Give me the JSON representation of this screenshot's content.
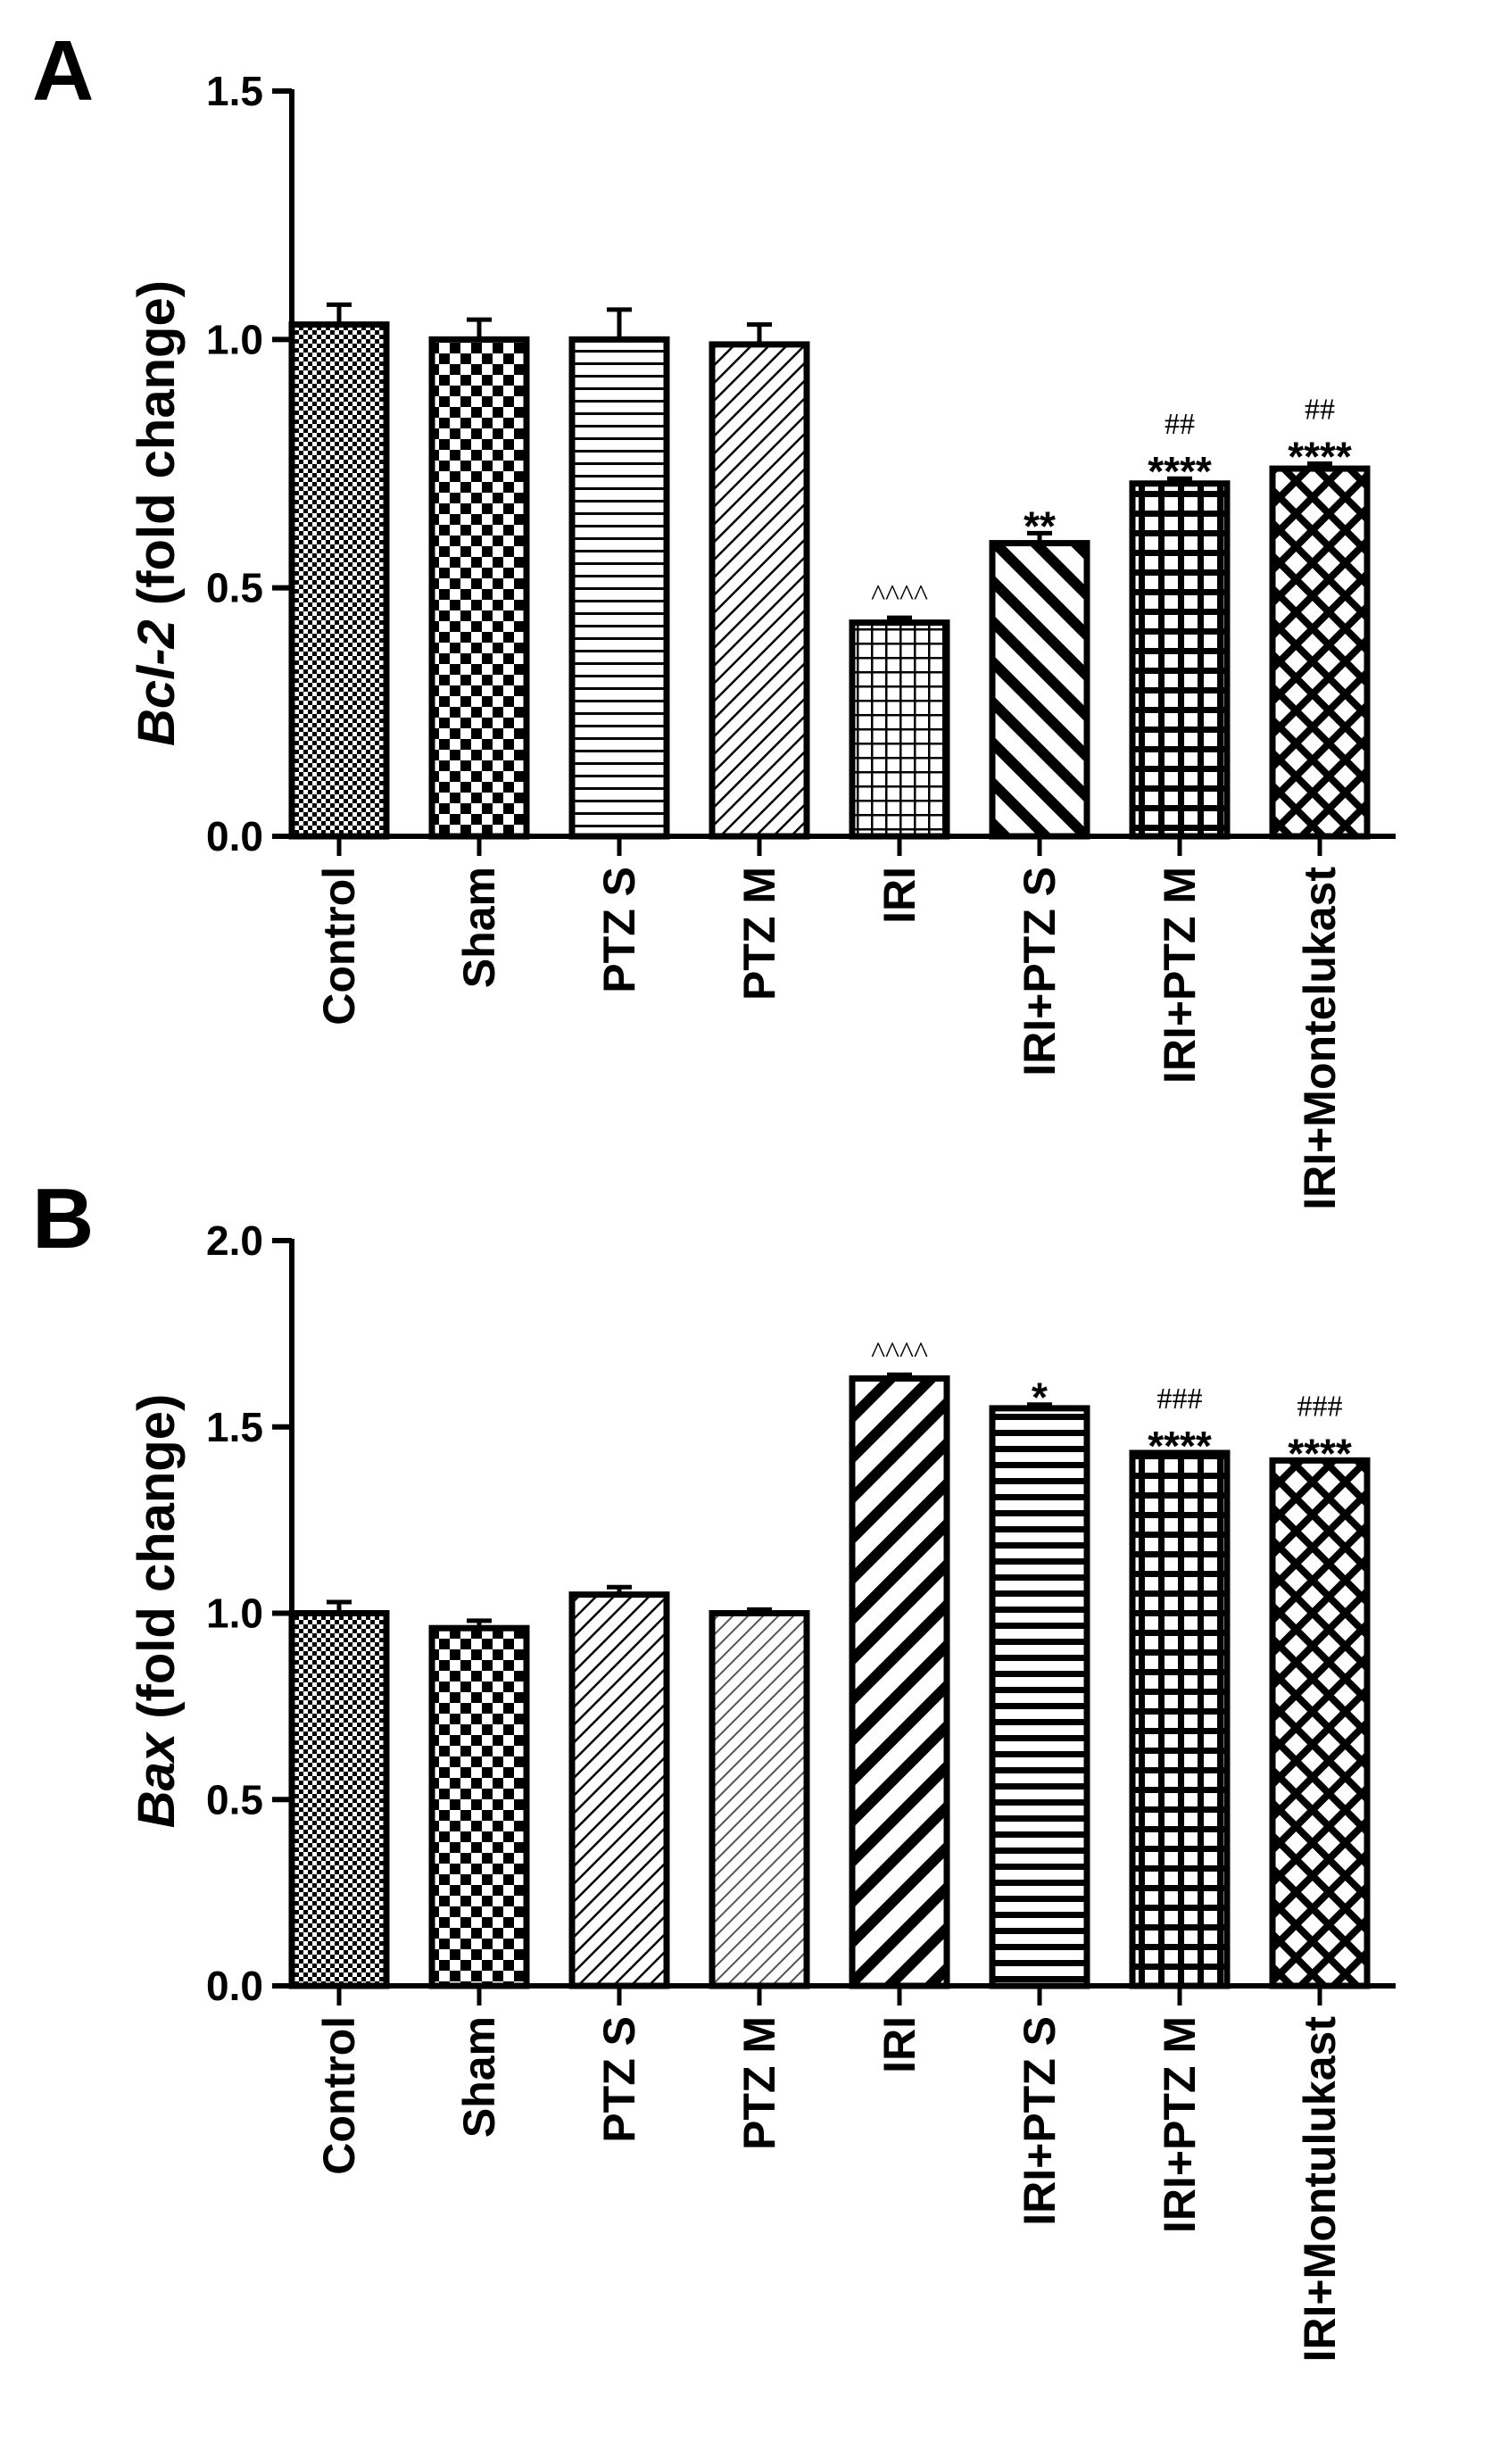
{
  "chart_data": [
    {
      "type": "bar",
      "panel": "A",
      "ylabel_italic": "Bcl-2",
      "ylabel_rest": " (fold change)",
      "ylim": [
        0,
        1.5
      ],
      "yticks": [
        "0.0",
        "0.5",
        "1.0",
        "1.5"
      ],
      "yticks_values": [
        0,
        0.5,
        1.0,
        1.5
      ],
      "categories": [
        "Control",
        "Sham",
        "PTZ S",
        "PTZ M",
        "IRI",
        "IRI+PTZ S",
        "IRI+PTZ M",
        "IRI+Montelukast"
      ],
      "values": [
        1.03,
        1.0,
        1.0,
        0.99,
        0.43,
        0.59,
        0.71,
        0.74
      ],
      "errors": [
        0.04,
        0.04,
        0.06,
        0.04,
        0.01,
        0.02,
        0.01,
        0.01
      ],
      "patterns": [
        "fine-checker",
        "checker",
        "hlines",
        "diag-thin",
        "grid-small",
        "diag-thick",
        "grid-thick",
        "crosshatch"
      ],
      "annotations": [
        {
          "bar": 4,
          "lines": [
            "^^^^"
          ]
        },
        {
          "bar": 5,
          "lines": [
            "**"
          ]
        },
        {
          "bar": 6,
          "lines": [
            "##",
            "****"
          ]
        },
        {
          "bar": 7,
          "lines": [
            "##",
            "****"
          ]
        }
      ]
    },
    {
      "type": "bar",
      "panel": "B",
      "ylabel_italic": "Bax",
      "ylabel_rest": " (fold change)",
      "ylim": [
        0,
        2.0
      ],
      "yticks": [
        "0.0",
        "0.5",
        "1.0",
        "1.5",
        "2.0"
      ],
      "yticks_values": [
        0,
        0.5,
        1.0,
        1.5,
        2.0
      ],
      "categories": [
        "Control",
        "Sham",
        "PTZ S",
        "PTZ M",
        "IRI",
        "IRI+PTZ S",
        "IRI+PTZ M",
        "IRI+Montulukast"
      ],
      "values": [
        1.0,
        0.96,
        1.05,
        1.0,
        1.63,
        1.55,
        1.43,
        1.41
      ],
      "errors": [
        0.03,
        0.02,
        0.02,
        0.01,
        0.01,
        0.01,
        0.0,
        0.0
      ],
      "patterns": [
        "fine-checker",
        "checker",
        "diag-thin",
        "diag-thin-gray",
        "diag-thick-rev",
        "hlines-thick",
        "grid-thick",
        "crosshatch"
      ],
      "annotations": [
        {
          "bar": 4,
          "lines": [
            "^^^^"
          ]
        },
        {
          "bar": 5,
          "lines": [
            "*"
          ]
        },
        {
          "bar": 6,
          "lines": [
            "###",
            "****"
          ]
        },
        {
          "bar": 7,
          "lines": [
            "###",
            "****"
          ]
        }
      ]
    }
  ]
}
